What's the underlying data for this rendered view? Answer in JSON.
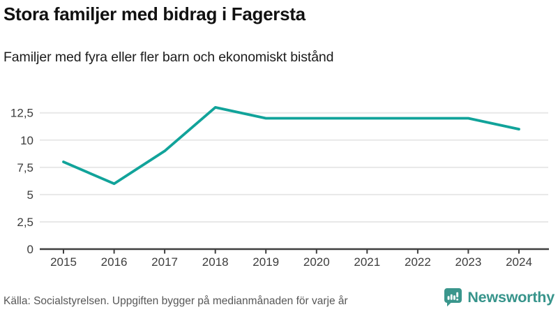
{
  "header": {
    "title": "Stora familjer med bidrag i Fagersta",
    "subtitle": "Familjer med fyra eller fler barn och ekonomiskt bistånd"
  },
  "chart_data": {
    "type": "line",
    "title": "Stora familjer med bidrag i Fagersta",
    "subtitle": "Familjer med fyra eller fler barn och ekonomiskt bistånd",
    "categories": [
      "2015",
      "2016",
      "2017",
      "2018",
      "2019",
      "2020",
      "2021",
      "2022",
      "2023",
      "2024"
    ],
    "values": [
      8,
      6,
      9,
      13,
      12,
      12,
      12,
      12,
      12,
      11
    ],
    "xlabel": "",
    "ylabel": "",
    "ylim": [
      0,
      14.4
    ],
    "y_ticks": [
      0,
      2.5,
      5,
      7.5,
      10,
      12.5
    ],
    "y_tick_labels": [
      "0",
      "2,5",
      "5",
      "7,5",
      "10",
      "12,5"
    ],
    "grid": true,
    "legend": "none",
    "line_color": "#11a39a"
  },
  "footer": {
    "source": "Källa: Socialstyrelsen. Uppgiften bygger på medianmånaden för varje år",
    "brand": "Newsworthy"
  },
  "colors": {
    "line": "#11a39a",
    "grid": "#e8e8e8",
    "axis": "#3f3f3f",
    "tick_label": "#3d3d3d",
    "title_text": "#111111",
    "source_text": "#575757",
    "brand": "#37948b",
    "background": "#ffffff"
  }
}
